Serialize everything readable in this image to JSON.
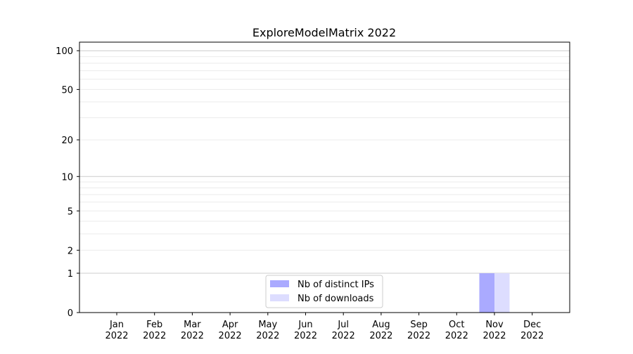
{
  "chart_data": {
    "type": "bar",
    "title": "ExploreModelMatrix 2022",
    "xlabel": "",
    "ylabel": "",
    "y_scale": "log(1+y)",
    "ylim": [
      0,
      116
    ],
    "y_ticks": [
      0,
      1,
      2,
      5,
      10,
      20,
      50,
      100
    ],
    "grid": true,
    "legend_position": "lower-center",
    "categories": [
      "Jan\n2022",
      "Feb\n2022",
      "Mar\n2022",
      "Apr\n2022",
      "May\n2022",
      "Jun\n2022",
      "Jul\n2022",
      "Aug\n2022",
      "Sep\n2022",
      "Oct\n2022",
      "Nov\n2022",
      "Dec\n2022"
    ],
    "series": [
      {
        "name": "Nb of distinct IPs",
        "color": "#aaaaff",
        "values": [
          0,
          0,
          0,
          0,
          0,
          0,
          0,
          0,
          0,
          0,
          1,
          0
        ]
      },
      {
        "name": "Nb of downloads",
        "color": "#ddddff",
        "values": [
          0,
          0,
          0,
          0,
          0,
          0,
          0,
          0,
          0,
          0,
          1,
          0
        ]
      }
    ]
  }
}
